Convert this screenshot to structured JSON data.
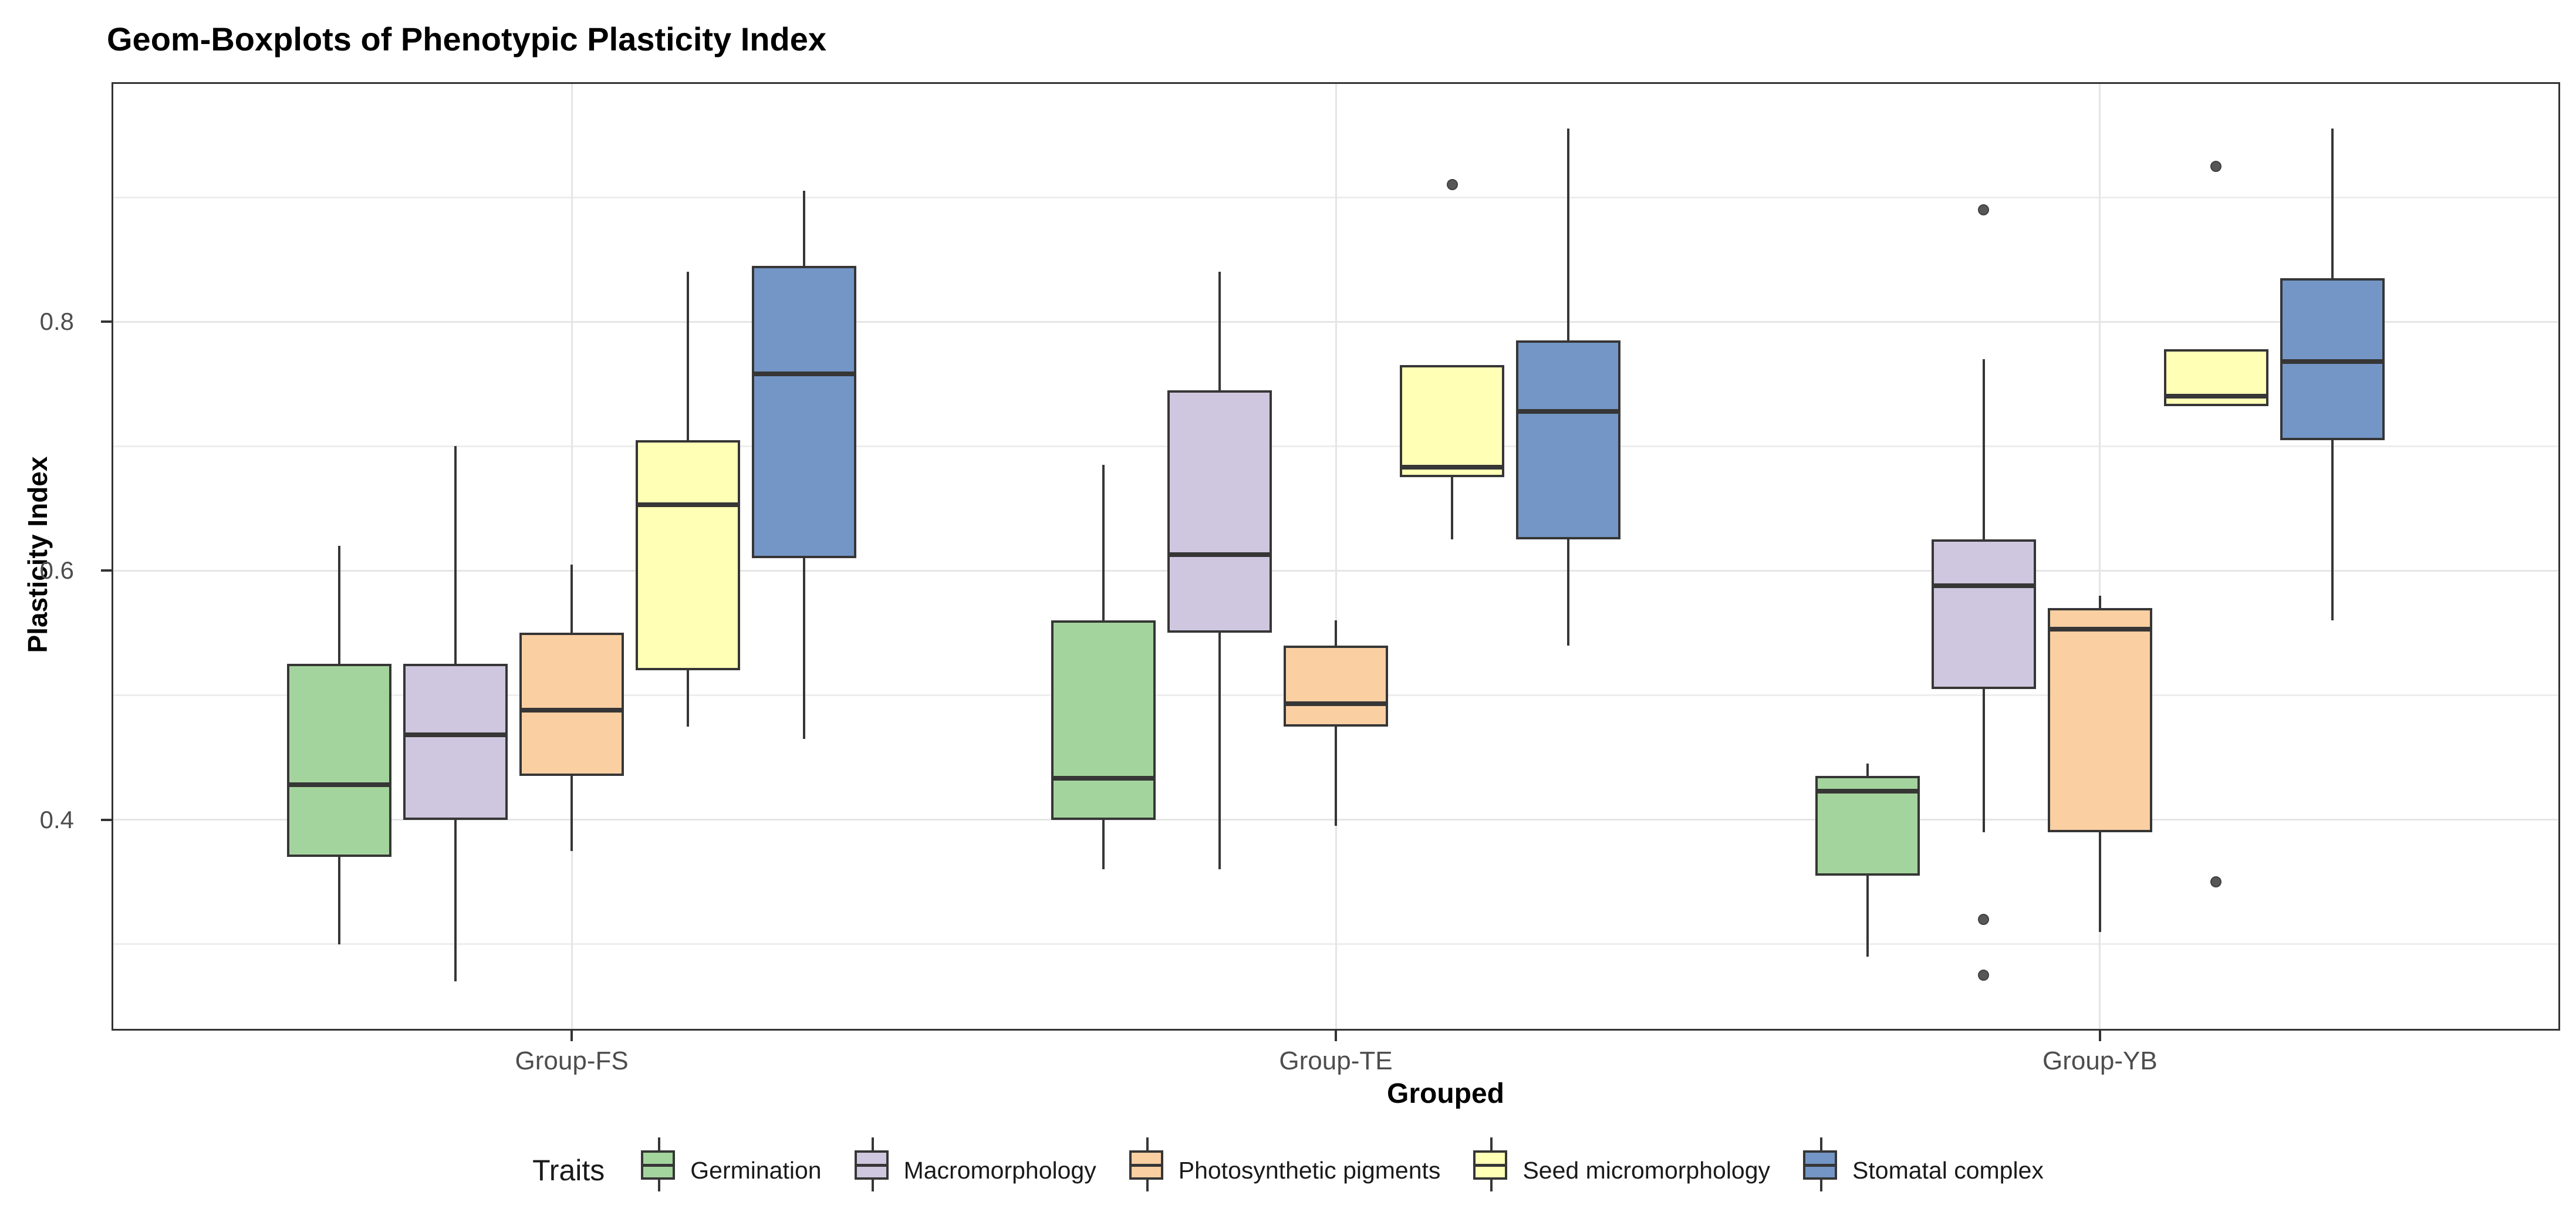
{
  "title": "Geom-Boxplots of Phenotypic Plasticity Index",
  "axes": {
    "y_title": "Plasticity Index",
    "x_title": "Grouped"
  },
  "chart_data": {
    "type": "boxplot",
    "title": "Geom-Boxplots of Phenotypic Plasticity Index",
    "xlabel": "Grouped",
    "ylabel": "Plasticity Index",
    "categories": [
      "Group-FS",
      "Group-TE",
      "Group-YB"
    ],
    "legend_title": "Traits",
    "legend_position": "bottom",
    "grid": true,
    "y_axis": {
      "ticks": [
        {
          "value": 0.8,
          "label": "0.8"
        },
        {
          "value": 0.6,
          "label": "0.6"
        },
        {
          "value": 0.4,
          "label": "0.4"
        }
      ],
      "minor_gridlines": [
        0.9,
        0.7,
        0.5,
        0.3
      ],
      "range": [
        0.232,
        0.991
      ]
    },
    "series": [
      {
        "name": "Germination",
        "fill": "#A4D49D",
        "boxes": [
          {
            "group": "Group-FS",
            "whislo": 0.3,
            "q1": 0.37,
            "med": 0.43,
            "q3": 0.525,
            "whishi": 0.62,
            "outliers": []
          },
          {
            "group": "Group-TE",
            "whislo": 0.36,
            "q1": 0.4,
            "med": 0.435,
            "q3": 0.56,
            "whishi": 0.685,
            "outliers": []
          },
          {
            "group": "Group-YB",
            "whislo": 0.29,
            "q1": 0.355,
            "med": 0.425,
            "q3": 0.435,
            "whishi": 0.445,
            "outliers": []
          }
        ]
      },
      {
        "name": "Macromorphology",
        "fill": "#CFC6DF",
        "boxes": [
          {
            "group": "Group-FS",
            "whislo": 0.27,
            "q1": 0.4,
            "med": 0.47,
            "q3": 0.525,
            "whishi": 0.7,
            "outliers": []
          },
          {
            "group": "Group-TE",
            "whislo": 0.36,
            "q1": 0.55,
            "med": 0.615,
            "q3": 0.745,
            "whishi": 0.84,
            "outliers": []
          },
          {
            "group": "Group-YB",
            "whislo": 0.39,
            "q1": 0.505,
            "med": 0.59,
            "q3": 0.625,
            "whishi": 0.77,
            "outliers": [
              0.89,
              0.32,
              0.275
            ]
          }
        ]
      },
      {
        "name": "Photosynthetic pigments",
        "fill": "#FACFA2",
        "boxes": [
          {
            "group": "Group-FS",
            "whislo": 0.375,
            "q1": 0.435,
            "med": 0.49,
            "q3": 0.55,
            "whishi": 0.605,
            "outliers": []
          },
          {
            "group": "Group-TE",
            "whislo": 0.395,
            "q1": 0.475,
            "med": 0.495,
            "q3": 0.54,
            "whishi": 0.56,
            "outliers": []
          },
          {
            "group": "Group-YB",
            "whislo": 0.31,
            "q1": 0.39,
            "med": 0.555,
            "q3": 0.57,
            "whishi": 0.58,
            "outliers": []
          }
        ]
      },
      {
        "name": "Seed micromorphology",
        "fill": "#FFFFB6",
        "boxes": [
          {
            "group": "Group-FS",
            "whislo": 0.475,
            "q1": 0.52,
            "med": 0.655,
            "q3": 0.705,
            "whishi": 0.84,
            "outliers": []
          },
          {
            "group": "Group-TE",
            "whislo": 0.625,
            "q1": 0.675,
            "med": 0.685,
            "q3": 0.765,
            "whishi": 0.765,
            "outliers": [
              0.91
            ]
          },
          {
            "group": "Group-YB",
            "whislo": 0.732,
            "q1": 0.732,
            "med": 0.742,
            "q3": 0.778,
            "whishi": 0.778,
            "outliers": [
              0.925,
              0.35
            ]
          }
        ]
      },
      {
        "name": "Stomatal complex",
        "fill": "#7396C6",
        "boxes": [
          {
            "group": "Group-FS",
            "whislo": 0.465,
            "q1": 0.61,
            "med": 0.76,
            "q3": 0.845,
            "whishi": 0.905,
            "outliers": []
          },
          {
            "group": "Group-TE",
            "whislo": 0.54,
            "q1": 0.625,
            "med": 0.73,
            "q3": 0.785,
            "whishi": 0.955,
            "outliers": []
          },
          {
            "group": "Group-YB",
            "whislo": 0.56,
            "q1": 0.705,
            "med": 0.77,
            "q3": 0.835,
            "whishi": 0.955,
            "outliers": []
          }
        ]
      }
    ],
    "colors": {
      "box_stroke": "#363636",
      "grid_major": "#e5e5e5",
      "grid_minor": "#ededed",
      "panel_border": "#333333",
      "tick_text": "#4d4d4d",
      "outlier": "#575757"
    }
  }
}
